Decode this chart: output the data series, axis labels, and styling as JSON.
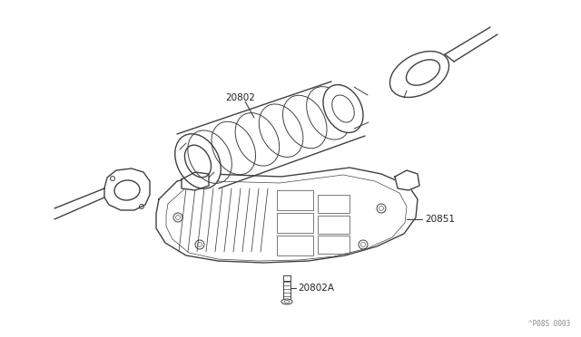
{
  "bg_color": "#ffffff",
  "line_color": "#404040",
  "label_color": "#222222",
  "watermark": "^P08S 0003",
  "figsize": [
    6.4,
    3.72
  ],
  "dpi": 100
}
